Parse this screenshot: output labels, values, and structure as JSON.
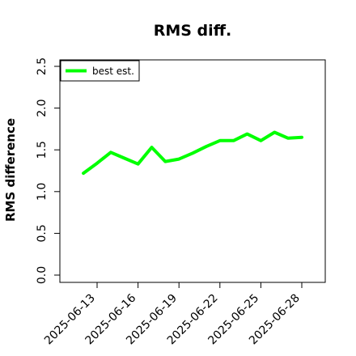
{
  "chart_data": {
    "type": "line",
    "title": "RMS diff.",
    "xlabel": "",
    "ylabel": "RMS difference",
    "ylim": [
      0.0,
      2.5
    ],
    "xlim": [
      "2025-06-11",
      "2025-06-29"
    ],
    "x_ticks": [
      "2025-06-13",
      "2025-06-16",
      "2025-06-19",
      "2025-06-22",
      "2025-06-25",
      "2025-06-28"
    ],
    "y_ticks": [
      "0.0",
      "0.5",
      "1.0",
      "1.5",
      "2.0",
      "2.5"
    ],
    "grid": false,
    "legend_position": "top-left",
    "series": [
      {
        "name": "best est.",
        "color": "#00ff00",
        "points": [
          {
            "x": "2025-06-12",
            "y": 1.22
          },
          {
            "x": "2025-06-13",
            "y": 1.34
          },
          {
            "x": "2025-06-14",
            "y": 1.47
          },
          {
            "x": "2025-06-15",
            "y": 1.4
          },
          {
            "x": "2025-06-16",
            "y": 1.33
          },
          {
            "x": "2025-06-17",
            "y": 1.53
          },
          {
            "x": "2025-06-18",
            "y": 1.36
          },
          {
            "x": "2025-06-19",
            "y": 1.39
          },
          {
            "x": "2025-06-20",
            "y": 1.46
          },
          {
            "x": "2025-06-21",
            "y": 1.54
          },
          {
            "x": "2025-06-22",
            "y": 1.61
          },
          {
            "x": "2025-06-23",
            "y": 1.61
          },
          {
            "x": "2025-06-24",
            "y": 1.69
          },
          {
            "x": "2025-06-25",
            "y": 1.61
          },
          {
            "x": "2025-06-26",
            "y": 1.71
          },
          {
            "x": "2025-06-27",
            "y": 1.64
          },
          {
            "x": "2025-06-28",
            "y": 1.65
          }
        ]
      }
    ]
  }
}
